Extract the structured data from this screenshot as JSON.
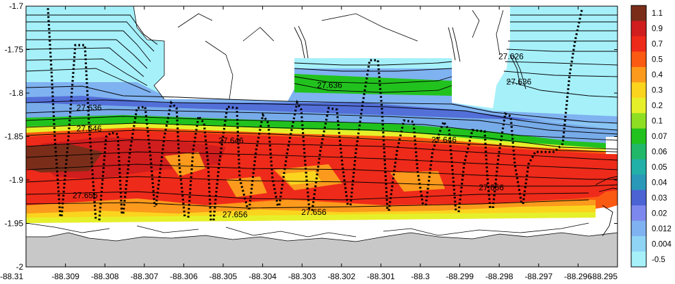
{
  "chart_data": {
    "type": "heatmap",
    "title": "",
    "xlabel": "",
    "ylabel": "",
    "xlim": [
      -88.31,
      -88.295
    ],
    "ylim": [
      -2.0,
      -1.7
    ],
    "x_ticks": [
      "-88.31",
      "-88.309",
      "-88.308",
      "-88.307",
      "-88.306",
      "-88.305",
      "-88.304",
      "-88.303",
      "-88.302",
      "-88.301",
      "-88.3",
      "-88.299",
      "-88.298",
      "-88.297",
      "-88.296",
      "-88.295"
    ],
    "x_tick_values": [
      -88.31,
      -88.309,
      -88.308,
      -88.307,
      -88.306,
      -88.305,
      -88.304,
      -88.303,
      -88.302,
      -88.301,
      -88.3,
      -88.299,
      -88.298,
      -88.297,
      -88.296,
      -88.295
    ],
    "y_ticks": [
      "-1.7",
      "-1.75",
      "-1.8",
      "-1.85",
      "-1.9",
      "-1.95",
      "-2"
    ],
    "y_tick_values": [
      -1.7,
      -1.75,
      -1.8,
      -1.85,
      -1.9,
      -1.95,
      -2.0
    ],
    "colorbar": {
      "labels": [
        "1.1",
        "0.9",
        "0.7",
        "0.5",
        "0.4",
        "0.3",
        "0.2",
        "0.1",
        "0.07",
        "0.06",
        "0.05",
        "0.04",
        "0.03",
        "0.02",
        "0.012",
        "0.004",
        "-0.5"
      ],
      "colors": [
        "#7a2e1a",
        "#d01d1d",
        "#ee2a1a",
        "#fb5a12",
        "#fb9a1c",
        "#fbd41e",
        "#e6f02a",
        "#8ede24",
        "#22c21e",
        "#22b86a",
        "#22b0a8",
        "#2a98b8",
        "#4b63d3",
        "#7d88ee",
        "#7fb2f0",
        "#8fd4f5",
        "#a6f0fa"
      ]
    },
    "contour_labels": [
      {
        "text": "27.626",
        "x": -88.2977,
        "y": -1.761
      },
      {
        "text": "27.636",
        "x": -88.3023,
        "y": -1.794
      },
      {
        "text": "27.636",
        "x": -88.3084,
        "y": -1.82
      },
      {
        "text": "27.646",
        "x": -88.3084,
        "y": -1.844
      },
      {
        "text": "27.646",
        "x": -88.3048,
        "y": -1.858
      },
      {
        "text": "27.646",
        "x": -88.2994,
        "y": -1.857
      },
      {
        "text": "27.656",
        "x": -88.3085,
        "y": -1.921
      },
      {
        "text": "27.656",
        "x": -88.2982,
        "y": -1.912
      },
      {
        "text": "27.656",
        "x": -88.3047,
        "y": -1.943
      },
      {
        "text": "27.656",
        "x": -88.3027,
        "y": -1.94
      },
      {
        "text": "27.636",
        "x": -88.2975,
        "y": -1.79
      }
    ],
    "grid": false,
    "legend": "colorbar right"
  }
}
